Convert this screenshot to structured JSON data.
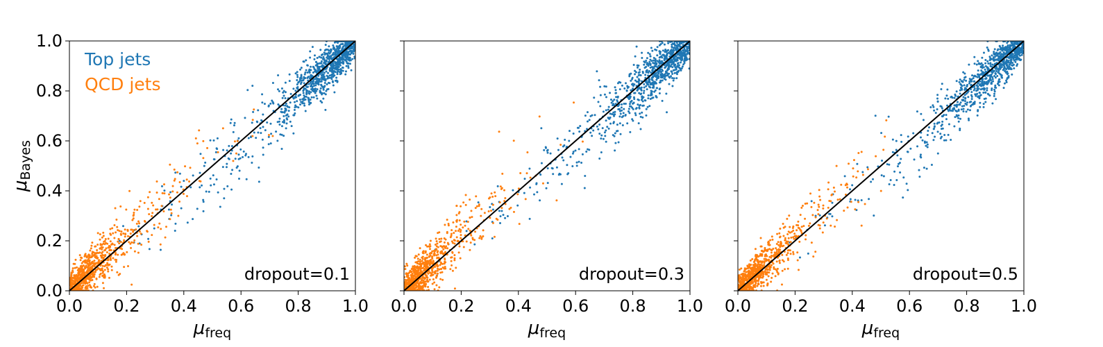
{
  "chart_data": [
    {
      "type": "scatter",
      "annotation": "dropout=0.1",
      "xlabel": "μ",
      "xlabel_sub": "freq",
      "ylabel": "μ",
      "ylabel_sub": "Bayes",
      "xlim": [
        0.0,
        1.0
      ],
      "ylim": [
        0.0,
        1.0
      ],
      "x_ticks": [
        "0.0",
        "0.2",
        "0.4",
        "0.6",
        "0.8",
        "1.0"
      ],
      "y_ticks": [
        "0.0",
        "0.2",
        "0.4",
        "0.6",
        "0.8",
        "1.0"
      ],
      "show_y_tick_labels": true,
      "grid": false,
      "legend": {
        "placement": "top-left",
        "entries": [
          "Top jets",
          "QCD jets"
        ]
      },
      "reference_line": {
        "x": [
          0,
          1
        ],
        "y": [
          0,
          1
        ],
        "color": "#000000"
      },
      "series": [
        {
          "name": "Top jets",
          "color": "#1f77b4",
          "n": 1000,
          "x_dist": [
            0.88,
            0.12
          ],
          "y_spread": 0.07,
          "y_bias": -0.02
        },
        {
          "name": "QCD jets",
          "color": "#ff7f0e",
          "n": 850,
          "x_dist": [
            0.06,
            0.08
          ],
          "y_spread": 0.07,
          "y_bias": 0.03
        }
      ]
    },
    {
      "type": "scatter",
      "annotation": "dropout=0.3",
      "xlabel": "μ",
      "xlabel_sub": "freq",
      "xlim": [
        0.0,
        1.0
      ],
      "ylim": [
        0.0,
        1.0
      ],
      "x_ticks": [
        "0.0",
        "0.2",
        "0.4",
        "0.6",
        "0.8",
        "1.0"
      ],
      "y_ticks": [
        "0.0",
        "0.2",
        "0.4",
        "0.6",
        "0.8",
        "1.0"
      ],
      "show_y_tick_labels": false,
      "grid": false,
      "reference_line": {
        "x": [
          0,
          1
        ],
        "y": [
          0,
          1
        ],
        "color": "#000000"
      },
      "series": [
        {
          "name": "Top jets",
          "color": "#1f77b4",
          "n": 1000,
          "x_dist": [
            0.88,
            0.12
          ],
          "y_spread": 0.07,
          "y_bias": -0.02
        },
        {
          "name": "QCD jets",
          "color": "#ff7f0e",
          "n": 850,
          "x_dist": [
            0.05,
            0.07
          ],
          "y_spread": 0.07,
          "y_bias": 0.03
        }
      ]
    },
    {
      "type": "scatter",
      "annotation": "dropout=0.5",
      "xlabel": "μ",
      "xlabel_sub": "freq",
      "xlim": [
        0.0,
        1.0
      ],
      "ylim": [
        0.0,
        1.0
      ],
      "x_ticks": [
        "0.0",
        "0.2",
        "0.4",
        "0.6",
        "0.8",
        "1.0"
      ],
      "y_ticks": [
        "0.0",
        "0.2",
        "0.4",
        "0.6",
        "0.8",
        "1.0"
      ],
      "show_y_tick_labels": false,
      "grid": false,
      "reference_line": {
        "x": [
          0,
          1
        ],
        "y": [
          0,
          1
        ],
        "color": "#000000"
      },
      "series": [
        {
          "name": "Top jets",
          "color": "#1f77b4",
          "n": 1000,
          "x_dist": [
            0.88,
            0.12
          ],
          "y_spread": 0.065,
          "y_bias": -0.02
        },
        {
          "name": "QCD jets",
          "color": "#ff7f0e",
          "n": 850,
          "x_dist": [
            0.05,
            0.07
          ],
          "y_spread": 0.065,
          "y_bias": 0.03
        }
      ]
    }
  ]
}
